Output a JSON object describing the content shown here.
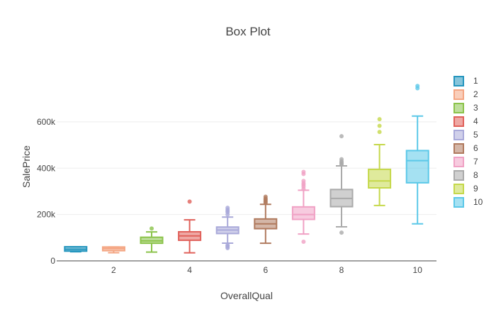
{
  "chart_data": {
    "type": "box",
    "title": "Box Plot",
    "xlabel": "OverallQual",
    "ylabel": "SalePrice",
    "xlim": [
      0.5,
      10.5
    ],
    "ylim": [
      0,
      820000
    ],
    "x_ticks": [
      2,
      4,
      6,
      8,
      10
    ],
    "x_tick_labels": [
      "2",
      "4",
      "6",
      "8",
      "10"
    ],
    "y_ticks": [
      0,
      200000,
      400000,
      600000
    ],
    "y_tick_labels": [
      "0",
      "200k",
      "400k",
      "600k"
    ],
    "grid": true,
    "legend_position": "right",
    "series": [
      {
        "name": "1",
        "x": 1,
        "color": "#2596be",
        "min": 39300,
        "q1": 42000,
        "median": 50000,
        "q3": 61000,
        "max": 61000,
        "outliers": []
      },
      {
        "name": "2",
        "x": 2,
        "color": "#f4a582",
        "min": 35311,
        "q1": 44000,
        "median": 53000,
        "q3": 60000,
        "max": 60000,
        "outliers": []
      },
      {
        "name": "3",
        "x": 3,
        "color": "#8bc34a",
        "min": 37900,
        "q1": 76000,
        "median": 86250,
        "q3": 102000,
        "max": 125000,
        "outliers": [
          139600
        ]
      },
      {
        "name": "4",
        "x": 4,
        "color": "#e0605a",
        "min": 34900,
        "q1": 89000,
        "median": 108000,
        "q3": 125500,
        "max": 177000,
        "outliers": [
          256000
        ]
      },
      {
        "name": "5",
        "x": 5,
        "color": "#a9a9d9",
        "min": 76500,
        "q1": 118000,
        "median": 133000,
        "q3": 146000,
        "max": 189000,
        "outliers": [
          55000,
          60000,
          64500,
          68000,
          200000,
          210000,
          215000,
          221000,
          228950
        ]
      },
      {
        "name": "6",
        "x": 6,
        "color": "#b07a5e",
        "min": 76000,
        "q1": 139000,
        "median": 160000,
        "q3": 181000,
        "max": 244000,
        "outliers": [
          250000,
          255000,
          260000,
          265000,
          269500,
          277000
        ]
      },
      {
        "name": "7",
        "x": 7,
        "color": "#f0a1c4",
        "min": 116000,
        "q1": 179000,
        "median": 200000,
        "q3": 233000,
        "max": 305000,
        "outliers": [
          82500,
          310000,
          320000,
          328000,
          335000,
          345000,
          375000,
          383970
        ]
      },
      {
        "name": "8",
        "x": 8,
        "color": "#aaaaaa",
        "min": 147000,
        "q1": 234000,
        "median": 269750,
        "q3": 308000,
        "max": 410000,
        "outliers": [
          122000,
          415000,
          420000,
          425000,
          430000,
          438780,
          538000
        ]
      },
      {
        "name": "9",
        "x": 9,
        "color": "#c5d84a",
        "min": 239000,
        "q1": 315000,
        "median": 345000,
        "q3": 395000,
        "max": 501837,
        "outliers": [
          556581,
          582933,
          611657
        ]
      },
      {
        "name": "10",
        "x": 10,
        "color": "#5bc8e8",
        "min": 160000,
        "q1": 337000,
        "median": 432390,
        "q3": 476000,
        "max": 625000,
        "outliers": [
          745000,
          755000
        ]
      }
    ]
  }
}
